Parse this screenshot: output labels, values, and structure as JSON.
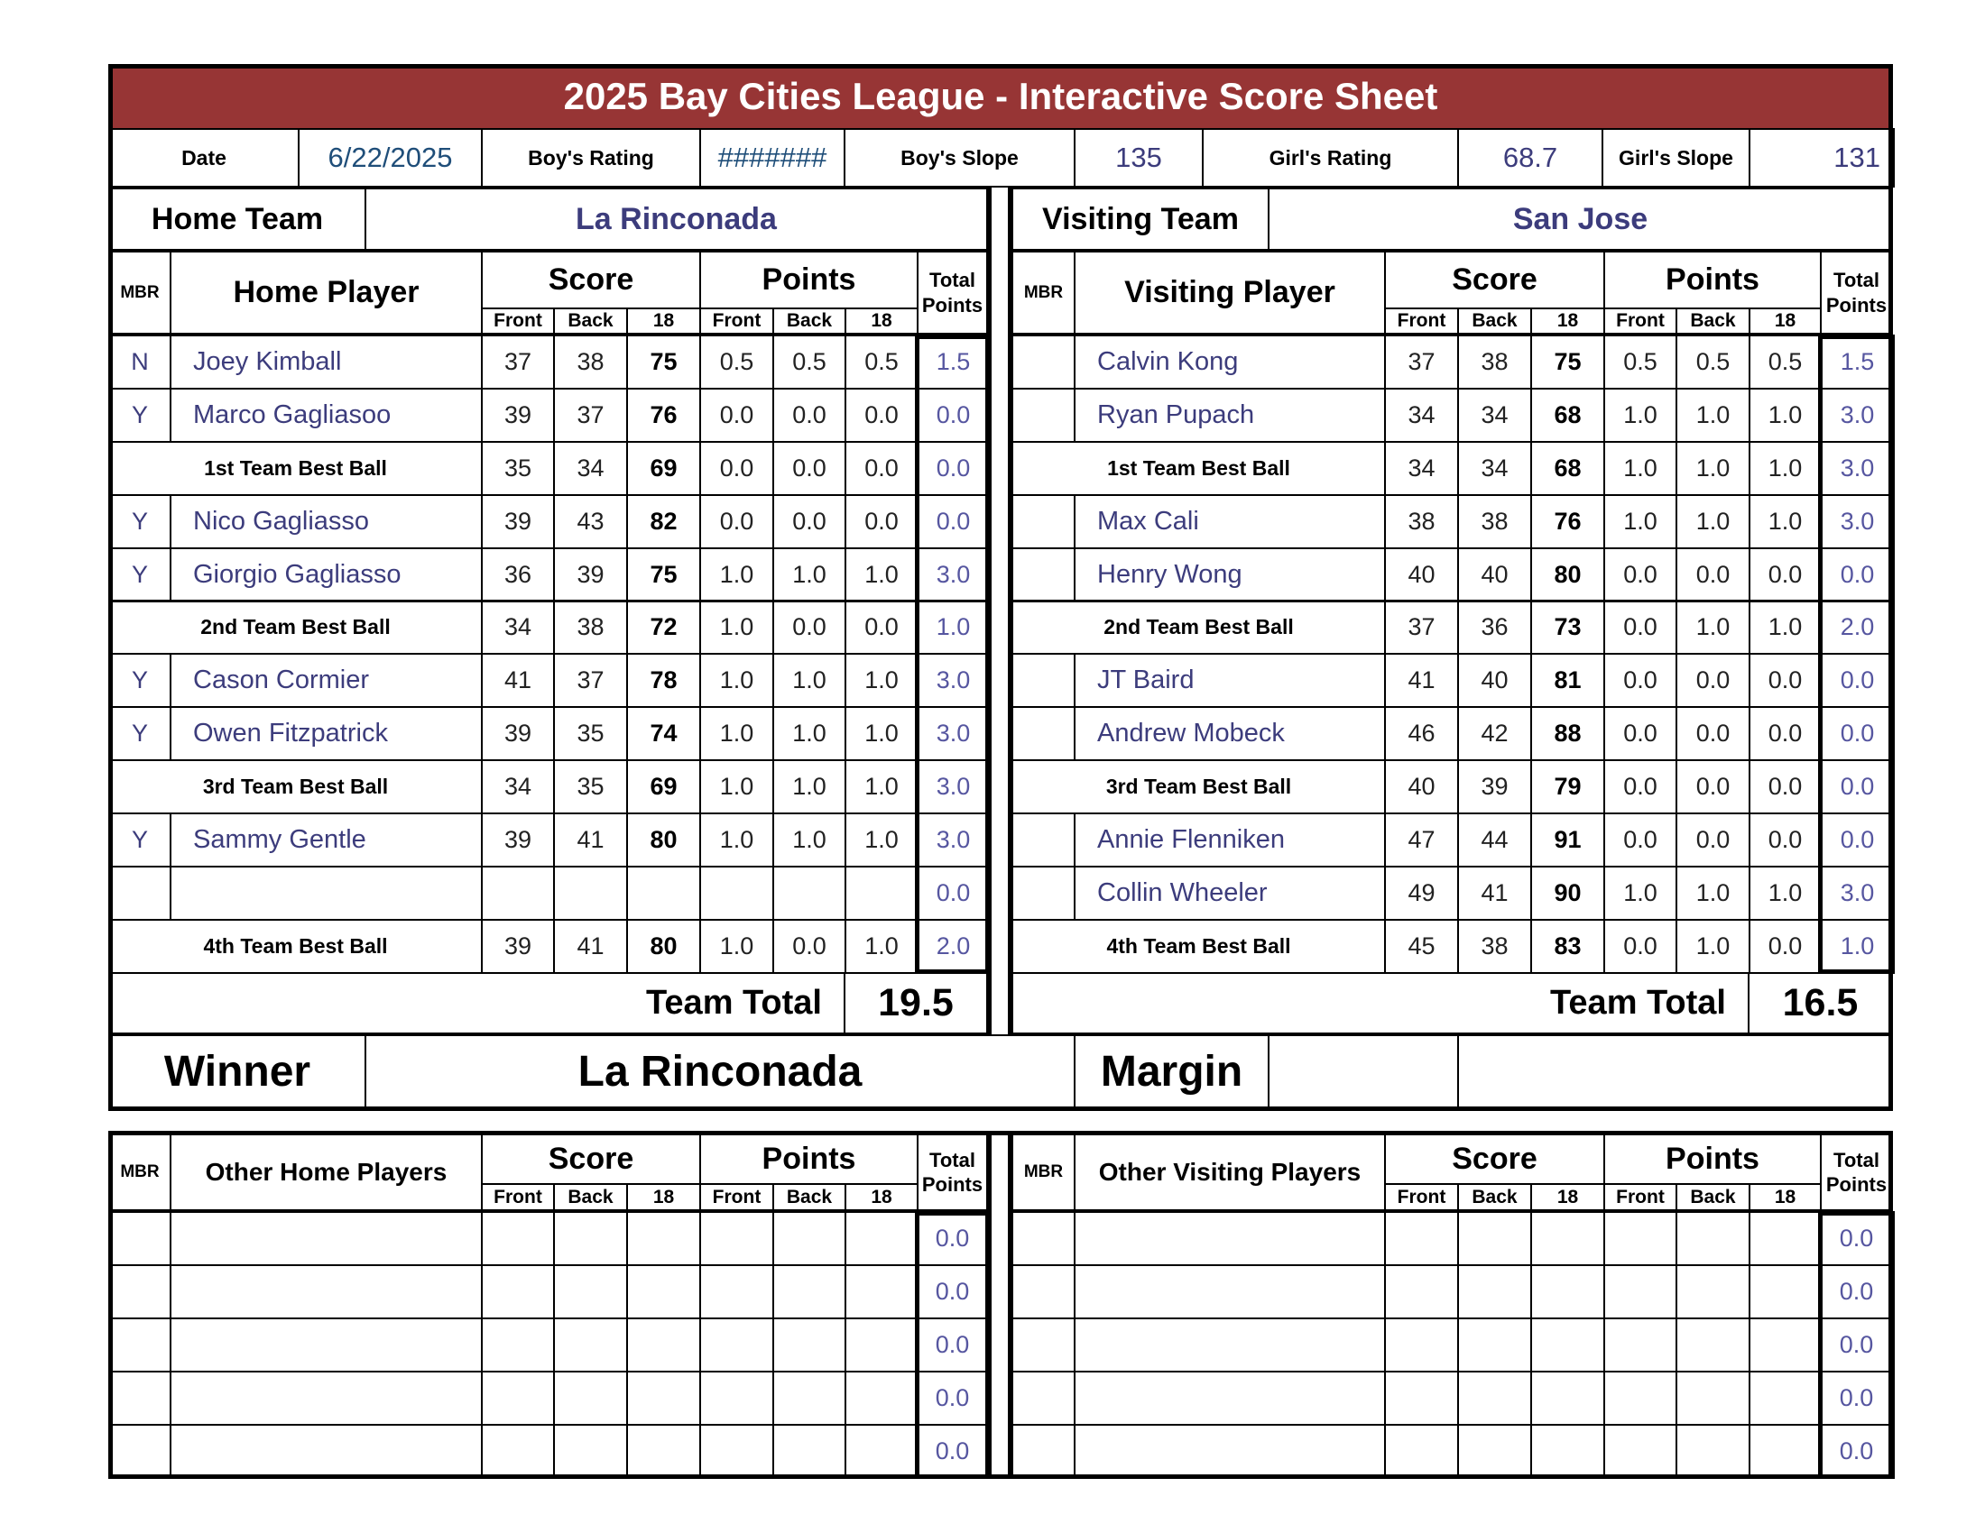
{
  "title": "2025 Bay Cities League - Interactive Score Sheet",
  "colors": {
    "title_bar": "#973535",
    "value_text": "#3c3c7c",
    "date_text": "#1f4e79"
  },
  "info": {
    "date_label": "Date",
    "date": "6/22/2025",
    "boys_rating_label": "Boy's Rating",
    "boys_rating": "#######",
    "boys_slope_label": "Boy's Slope",
    "boys_slope": "135",
    "girls_rating_label": "Girl's Rating",
    "girls_rating": "68.7",
    "girls_slope_label": "Girl's Slope",
    "girls_slope": "131"
  },
  "columns": {
    "mbr": "MBR",
    "score": "Score",
    "points": "Points",
    "total": "Total Points",
    "front": "Front",
    "back": "Back",
    "eighteen": "18"
  },
  "home": {
    "team_label": "Home Team",
    "team_name": "La Rinconada",
    "player_header": "Home Player",
    "team_total_label": "Team Total",
    "team_total": "19.5",
    "rows": [
      {
        "mbr": "N",
        "name": "Joey Kimball",
        "front": "37",
        "back": "38",
        "total18": "75",
        "p_front": "0.5",
        "p_back": "0.5",
        "p_18": "0.5",
        "total_points": "1.5"
      },
      {
        "mbr": "Y",
        "name": "Marco Gagliasoo",
        "front": "39",
        "back": "37",
        "total18": "76",
        "p_front": "0.0",
        "p_back": "0.0",
        "p_18": "0.0",
        "total_points": "0.0"
      },
      {
        "label": "1st Team Best Ball",
        "front": "35",
        "back": "34",
        "total18": "69",
        "p_front": "0.0",
        "p_back": "0.0",
        "p_18": "0.0",
        "total_points": "0.0"
      },
      {
        "mbr": "Y",
        "name": "Nico Gagliasso",
        "front": "39",
        "back": "43",
        "total18": "82",
        "p_front": "0.0",
        "p_back": "0.0",
        "p_18": "0.0",
        "total_points": "0.0"
      },
      {
        "mbr": "Y",
        "name": "Giorgio Gagliasso",
        "front": "36",
        "back": "39",
        "total18": "75",
        "p_front": "1.0",
        "p_back": "1.0",
        "p_18": "1.0",
        "total_points": "3.0"
      },
      {
        "label": "2nd Team Best Ball",
        "front": "34",
        "back": "38",
        "total18": "72",
        "p_front": "1.0",
        "p_back": "0.0",
        "p_18": "0.0",
        "total_points": "1.0"
      },
      {
        "mbr": "Y",
        "name": "Cason Cormier",
        "front": "41",
        "back": "37",
        "total18": "78",
        "p_front": "1.0",
        "p_back": "1.0",
        "p_18": "1.0",
        "total_points": "3.0"
      },
      {
        "mbr": "Y",
        "name": "Owen Fitzpatrick",
        "front": "39",
        "back": "35",
        "total18": "74",
        "p_front": "1.0",
        "p_back": "1.0",
        "p_18": "1.0",
        "total_points": "3.0"
      },
      {
        "label": "3rd Team Best Ball",
        "front": "34",
        "back": "35",
        "total18": "69",
        "p_front": "1.0",
        "p_back": "1.0",
        "p_18": "1.0",
        "total_points": "3.0"
      },
      {
        "mbr": "Y",
        "name": "Sammy Gentle",
        "front": "39",
        "back": "41",
        "total18": "80",
        "p_front": "1.0",
        "p_back": "1.0",
        "p_18": "1.0",
        "total_points": "3.0"
      },
      {
        "mbr": "",
        "name": "",
        "front": "",
        "back": "",
        "total18": "",
        "p_front": "",
        "p_back": "",
        "p_18": "",
        "total_points": "0.0"
      },
      {
        "label": "4th Team Best Ball",
        "front": "39",
        "back": "41",
        "total18": "80",
        "p_front": "1.0",
        "p_back": "0.0",
        "p_18": "1.0",
        "total_points": "2.0"
      }
    ]
  },
  "visiting": {
    "team_label": "Visiting Team",
    "team_name": "San Jose",
    "player_header": "Visiting Player",
    "team_total_label": "Team Total",
    "team_total": "16.5",
    "rows": [
      {
        "mbr": "",
        "name": "Calvin Kong",
        "front": "37",
        "back": "38",
        "total18": "75",
        "p_front": "0.5",
        "p_back": "0.5",
        "p_18": "0.5",
        "total_points": "1.5"
      },
      {
        "mbr": "",
        "name": "Ryan Pupach",
        "front": "34",
        "back": "34",
        "total18": "68",
        "p_front": "1.0",
        "p_back": "1.0",
        "p_18": "1.0",
        "total_points": "3.0"
      },
      {
        "label": "1st Team Best Ball",
        "front": "34",
        "back": "34",
        "total18": "68",
        "p_front": "1.0",
        "p_back": "1.0",
        "p_18": "1.0",
        "total_points": "3.0"
      },
      {
        "mbr": "",
        "name": "Max Cali",
        "front": "38",
        "back": "38",
        "total18": "76",
        "p_front": "1.0",
        "p_back": "1.0",
        "p_18": "1.0",
        "total_points": "3.0"
      },
      {
        "mbr": "",
        "name": "Henry Wong",
        "front": "40",
        "back": "40",
        "total18": "80",
        "p_front": "0.0",
        "p_back": "0.0",
        "p_18": "0.0",
        "total_points": "0.0"
      },
      {
        "label": "2nd Team Best Ball",
        "front": "37",
        "back": "36",
        "total18": "73",
        "p_front": "0.0",
        "p_back": "1.0",
        "p_18": "1.0",
        "total_points": "2.0"
      },
      {
        "mbr": "",
        "name": "JT Baird",
        "front": "41",
        "back": "40",
        "total18": "81",
        "p_front": "0.0",
        "p_back": "0.0",
        "p_18": "0.0",
        "total_points": "0.0"
      },
      {
        "mbr": "",
        "name": "Andrew Mobeck",
        "front": "46",
        "back": "42",
        "total18": "88",
        "p_front": "0.0",
        "p_back": "0.0",
        "p_18": "0.0",
        "total_points": "0.0"
      },
      {
        "label": "3rd Team Best Ball",
        "front": "40",
        "back": "39",
        "total18": "79",
        "p_front": "0.0",
        "p_back": "0.0",
        "p_18": "0.0",
        "total_points": "0.0"
      },
      {
        "mbr": "",
        "name": "Annie Flenniken",
        "front": "47",
        "back": "44",
        "total18": "91",
        "p_front": "0.0",
        "p_back": "0.0",
        "p_18": "0.0",
        "total_points": "0.0"
      },
      {
        "mbr": "",
        "name": "Collin Wheeler",
        "front": "49",
        "back": "41",
        "total18": "90",
        "p_front": "1.0",
        "p_back": "1.0",
        "p_18": "1.0",
        "total_points": "3.0"
      },
      {
        "label": "4th Team Best Ball",
        "front": "45",
        "back": "38",
        "total18": "83",
        "p_front": "0.0",
        "p_back": "1.0",
        "p_18": "0.0",
        "total_points": "1.0"
      }
    ]
  },
  "result": {
    "winner_label": "Winner",
    "winner": "La Rinconada",
    "margin_label": "Margin",
    "margin": "",
    "extra": ""
  },
  "other_home": {
    "player_header": "Other Home Players",
    "rows": [
      {
        "total_points": "0.0"
      },
      {
        "total_points": "0.0"
      },
      {
        "total_points": "0.0"
      },
      {
        "total_points": "0.0"
      },
      {
        "total_points": "0.0"
      }
    ]
  },
  "other_visiting": {
    "player_header": "Other Visiting Players",
    "rows": [
      {
        "total_points": "0.0"
      },
      {
        "total_points": "0.0"
      },
      {
        "total_points": "0.0"
      },
      {
        "total_points": "0.0"
      },
      {
        "total_points": "0.0"
      }
    ]
  }
}
